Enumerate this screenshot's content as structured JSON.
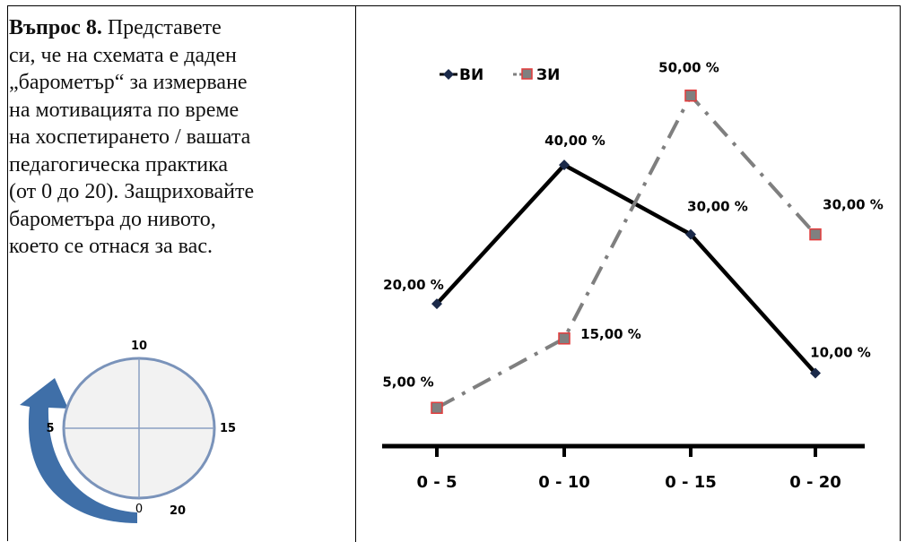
{
  "question": {
    "title": "Въпрос 8.",
    "lines": [
      "Представете",
      "си, че на схемата е даден",
      "„барометър“ за измерване",
      "на мотивацията по време",
      "на хоспетирането / вашата",
      "педагогическа практика",
      "(от 0 до 20). Защриховайте",
      "барометъра  до нивото,",
      "което се отнася за вас."
    ]
  },
  "barometer": {
    "labels": {
      "top": "10",
      "left": "5",
      "right": "15",
      "bottom": "0",
      "bottom_right": "20"
    },
    "arrow_color": "#3f6fa8"
  },
  "chart_data": {
    "type": "line",
    "categories": [
      "0 - 5",
      "0 - 10",
      "0 - 15",
      "0 - 20"
    ],
    "series": [
      {
        "name": "ВИ",
        "values": [
          20,
          40,
          30,
          10
        ],
        "labels": [
          "20,00 %",
          "40,00 %",
          "30,00 %",
          "10,00 %"
        ],
        "color": "#000000",
        "style": "solid",
        "marker": "diamond"
      },
      {
        "name": "ЗИ",
        "values": [
          5,
          15,
          50,
          30
        ],
        "labels": [
          "5,00 %",
          "15,00 %",
          "50,00 %",
          "30,00 %"
        ],
        "color": "#7f7f7f",
        "style": "dash-dot",
        "marker": "square",
        "marker_edge": "#e23b3b"
      }
    ],
    "ylim": [
      0,
      55
    ],
    "legend": "top-left",
    "grid": false
  }
}
